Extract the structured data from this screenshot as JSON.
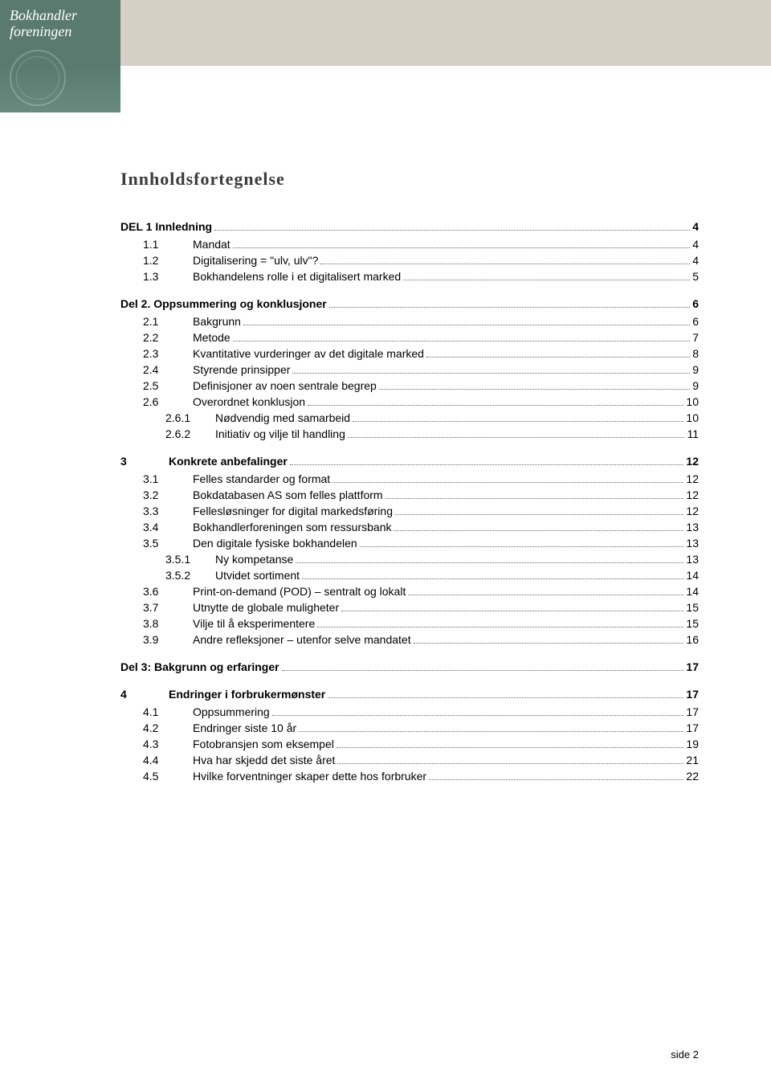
{
  "logo": {
    "line1": "Bokhandler",
    "line2": "foreningen"
  },
  "title": "Innholdsfortegnelse",
  "footer": "side 2",
  "toc": [
    {
      "level": 0,
      "num": "",
      "label": "DEL 1 Innledning",
      "page": "4"
    },
    {
      "level": 1,
      "num": "1.1",
      "label": "Mandat",
      "page": "4"
    },
    {
      "level": 1,
      "num": "1.2",
      "label": "Digitalisering = \"ulv, ulv\"?",
      "page": "4"
    },
    {
      "level": 1,
      "num": "1.3",
      "label": "Bokhandelens rolle i et digitalisert marked",
      "page": "5"
    },
    {
      "level": 0,
      "num": "",
      "label": "Del 2. Oppsummering og konklusjoner",
      "page": "6"
    },
    {
      "level": 1,
      "num": "2.1",
      "label": "Bakgrunn",
      "page": "6"
    },
    {
      "level": 1,
      "num": "2.2",
      "label": "Metode",
      "page": "7"
    },
    {
      "level": 1,
      "num": "2.3",
      "label": "Kvantitative vurderinger av det digitale marked",
      "page": "8"
    },
    {
      "level": 1,
      "num": "2.4",
      "label": "Styrende prinsipper",
      "page": "9"
    },
    {
      "level": 1,
      "num": "2.5",
      "label": "Definisjoner av noen sentrale begrep",
      "page": "9"
    },
    {
      "level": 1,
      "num": "2.6",
      "label": "Overordnet konklusjon",
      "page": "10"
    },
    {
      "level": 2,
      "num": "2.6.1",
      "label": "Nødvendig med samarbeid",
      "page": "10"
    },
    {
      "level": 2,
      "num": "2.6.2",
      "label": "Initiativ og vilje til handling",
      "page": "11"
    },
    {
      "level": 0,
      "num": "3",
      "label": "Konkrete anbefalinger",
      "page": "12",
      "chap": true
    },
    {
      "level": 1,
      "num": "3.1",
      "label": "Felles standarder og format",
      "page": "12"
    },
    {
      "level": 1,
      "num": "3.2",
      "label": "Bokdatabasen AS som felles plattform",
      "page": "12"
    },
    {
      "level": 1,
      "num": "3.3",
      "label": "Fellesløsninger for digital markedsføring",
      "page": "12"
    },
    {
      "level": 1,
      "num": "3.4",
      "label": "Bokhandlerforeningen som ressursbank",
      "page": "13"
    },
    {
      "level": 1,
      "num": "3.5",
      "label": "Den digitale fysiske bokhandelen",
      "page": "13"
    },
    {
      "level": 2,
      "num": "3.5.1",
      "label": "Ny kompetanse",
      "page": "13"
    },
    {
      "level": 2,
      "num": "3.5.2",
      "label": "Utvidet sortiment",
      "page": "14"
    },
    {
      "level": 1,
      "num": "3.6",
      "label": "Print-on-demand (POD) – sentralt og lokalt",
      "page": "14"
    },
    {
      "level": 1,
      "num": "3.7",
      "label": "Utnytte de globale muligheter",
      "page": "15"
    },
    {
      "level": 1,
      "num": "3.8",
      "label": "Vilje til å eksperimentere",
      "page": "15"
    },
    {
      "level": 1,
      "num": "3.9",
      "label": "Andre refleksjoner – utenfor selve mandatet",
      "page": "16"
    },
    {
      "level": 0,
      "num": "",
      "label": "Del 3: Bakgrunn og erfaringer",
      "page": "17"
    },
    {
      "level": 0,
      "num": "4",
      "label": "Endringer i forbrukermønster",
      "page": "17",
      "chap": true
    },
    {
      "level": 1,
      "num": "4.1",
      "label": "Oppsummering",
      "page": "17"
    },
    {
      "level": 1,
      "num": "4.2",
      "label": "Endringer siste 10 år",
      "page": "17"
    },
    {
      "level": 1,
      "num": "4.3",
      "label": "Fotobransjen som eksempel",
      "page": "19"
    },
    {
      "level": 1,
      "num": "4.4",
      "label": "Hva har skjedd det siste året",
      "page": "21"
    },
    {
      "level": 1,
      "num": "4.5",
      "label": "Hvilke forventninger skaper dette hos forbruker",
      "page": "22"
    }
  ]
}
